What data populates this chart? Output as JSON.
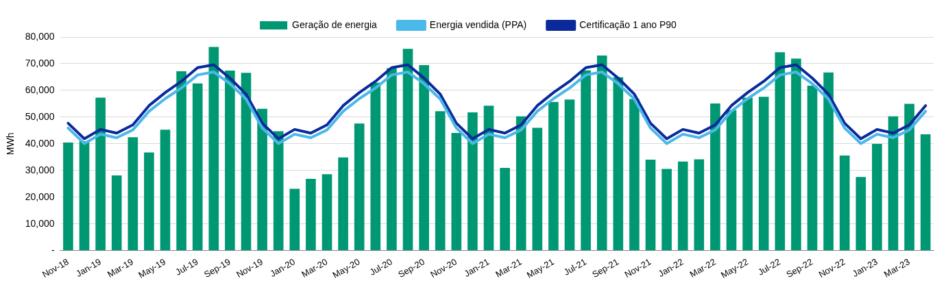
{
  "chart_data": {
    "type": "bar",
    "ylabel": "MWh",
    "categories": [
      "Nov-18",
      null,
      "Jan-19",
      null,
      "Mar-19",
      null,
      "May-19",
      null,
      "Jul-19",
      null,
      "Sep-19",
      null,
      "Nov-19",
      null,
      "Jan-20",
      null,
      "Mar-20",
      null,
      "May-20",
      null,
      "Jul-20",
      null,
      "Sep-20",
      null,
      "Nov-20",
      null,
      "Jan-21",
      null,
      "Mar-21",
      null,
      "May-21",
      null,
      "Jul-21",
      null,
      "Sep-21",
      null,
      "Nov-21",
      null,
      "Jan-22",
      null,
      "Mar-22",
      null,
      "May-22",
      null,
      "Jul-22",
      null,
      "Sep-22",
      null,
      "Nov-22",
      null,
      "Jan-23",
      null,
      "Mar-23",
      null
    ],
    "series": [
      {
        "name": "Geração de energia",
        "type": "bar",
        "color": "#009873",
        "values": [
          40500,
          41000,
          57300,
          28200,
          42500,
          36800,
          45300,
          67200,
          62600,
          76300,
          67400,
          66600,
          53100,
          44700,
          23200,
          26900,
          28600,
          34900,
          47600,
          62900,
          68300,
          75600,
          69500,
          52200,
          44100,
          51800,
          54300,
          31000,
          50300,
          46000,
          55700,
          56600,
          67500,
          73100,
          64900,
          56800,
          34100,
          30600,
          33400,
          34200,
          55100,
          52600,
          57300,
          57600,
          74300,
          71900,
          61800,
          66700,
          35600,
          27600,
          40000,
          50300,
          55000,
          43600
        ]
      },
      {
        "name": "Energia vendida (PPA)",
        "type": "line",
        "color": "#4ab8e8",
        "values": [
          45900,
          40100,
          43600,
          42300,
          45200,
          52200,
          56900,
          60900,
          65800,
          66900,
          62500,
          56800,
          45900,
          40100,
          43600,
          42300,
          45200,
          52200,
          56900,
          60900,
          65800,
          66900,
          62500,
          56800,
          45900,
          40100,
          43600,
          42300,
          45200,
          52200,
          56900,
          60900,
          65800,
          66900,
          62500,
          56800,
          45900,
          40100,
          43600,
          42300,
          45200,
          52200,
          56900,
          60900,
          65800,
          66900,
          62500,
          56800,
          45900,
          40100,
          43600,
          42300,
          45200,
          52200
        ]
      },
      {
        "name": "Certificação 1 ano P90",
        "type": "line",
        "color": "#0a2a9c",
        "values": [
          47700,
          41900,
          45400,
          44000,
          47100,
          54300,
          59200,
          63400,
          68500,
          69600,
          64600,
          58600,
          47700,
          41900,
          45400,
          44000,
          47100,
          54300,
          59200,
          63400,
          68500,
          69600,
          64600,
          58600,
          47700,
          41900,
          45400,
          44000,
          47100,
          54300,
          59200,
          63400,
          68500,
          69600,
          64600,
          58600,
          47700,
          41900,
          45400,
          44000,
          47100,
          54300,
          59200,
          63400,
          68500,
          69600,
          64600,
          58600,
          47700,
          41900,
          45400,
          44000,
          47100,
          54300
        ]
      }
    ],
    "ylim": [
      0,
      80000
    ],
    "yticks": [
      {
        "value": 0,
        "label": "-"
      },
      {
        "value": 10000,
        "label": "10,000"
      },
      {
        "value": 20000,
        "label": "20,000"
      },
      {
        "value": 30000,
        "label": "30,000"
      },
      {
        "value": 40000,
        "label": "40,000"
      },
      {
        "value": 50000,
        "label": "50,000"
      },
      {
        "value": 60000,
        "label": "60,000"
      },
      {
        "value": 70000,
        "label": "70,000"
      },
      {
        "value": 80000,
        "label": "80,000"
      }
    ],
    "grid": "y",
    "legend": "top",
    "marker": "none",
    "line_style": "solid"
  }
}
